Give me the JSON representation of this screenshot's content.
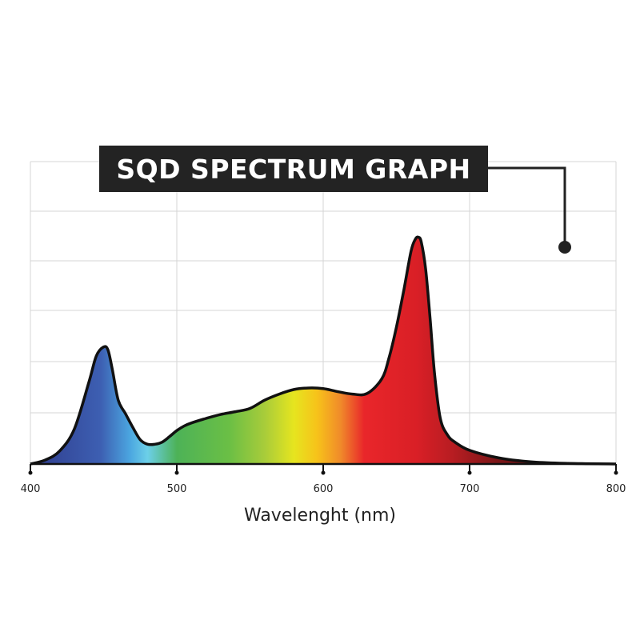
{
  "chart_data": {
    "type": "area",
    "title": "SQD SPECTRUM GRAPH",
    "xlabel": "Wavelenght (nm)",
    "ylabel": "",
    "xlim": [
      400,
      800
    ],
    "ylim": [
      0,
      1
    ],
    "x_ticks": [
      "400",
      "500",
      "600",
      "700",
      "800"
    ],
    "grid": true,
    "series": [
      {
        "x": [
          400,
          410,
          420,
          430,
          440,
          445,
          450,
          453,
          456,
          460,
          465,
          470,
          475,
          480,
          485,
          490,
          495,
          500,
          505,
          510,
          520,
          530,
          540,
          550,
          560,
          570,
          580,
          590,
          600,
          610,
          620,
          630,
          640,
          645,
          650,
          655,
          660,
          663,
          665,
          667,
          670,
          673,
          676,
          680,
          685,
          690,
          700,
          720,
          740,
          760,
          780,
          800
        ],
        "y": [
          0.0,
          0.013,
          0.043,
          0.115,
          0.27,
          0.355,
          0.385,
          0.375,
          0.31,
          0.21,
          0.165,
          0.12,
          0.08,
          0.065,
          0.065,
          0.072,
          0.09,
          0.11,
          0.125,
          0.135,
          0.15,
          0.163,
          0.172,
          0.183,
          0.21,
          0.23,
          0.245,
          0.25,
          0.248,
          0.238,
          0.23,
          0.232,
          0.28,
          0.35,
          0.45,
          0.57,
          0.7,
          0.74,
          0.746,
          0.73,
          0.64,
          0.48,
          0.3,
          0.15,
          0.095,
          0.072,
          0.045,
          0.02,
          0.008,
          0.003,
          0.001,
          0.0
        ]
      }
    ]
  }
}
